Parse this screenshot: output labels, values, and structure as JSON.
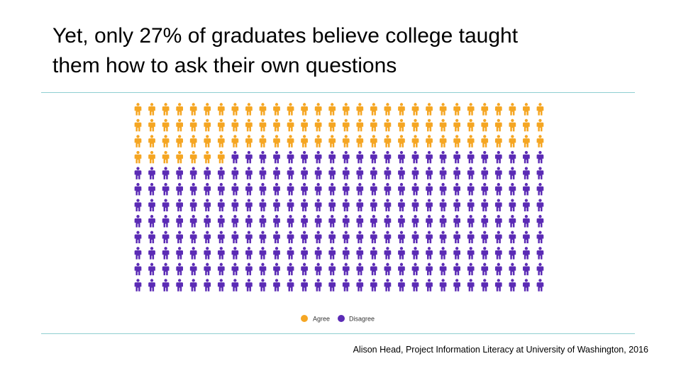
{
  "slide": {
    "title_line1": "Yet, only 27% of graduates believe college taught",
    "title_line2": "them how to ask their own questions",
    "source": "Alison Head, Project Information Literacy at University of Washington, 2016"
  },
  "chart_data": {
    "type": "waffle",
    "icon": "person-icon",
    "rows": 12,
    "columns": 30,
    "fill_order": "row-major, left-to-right, top-to-bottom",
    "series": [
      {
        "name": "Agree",
        "color": "#f5a623",
        "percent": 27
      },
      {
        "name": "Disagree",
        "color": "#5b2bb5",
        "percent": 73
      }
    ],
    "legend": {
      "position": "bottom-center"
    }
  }
}
